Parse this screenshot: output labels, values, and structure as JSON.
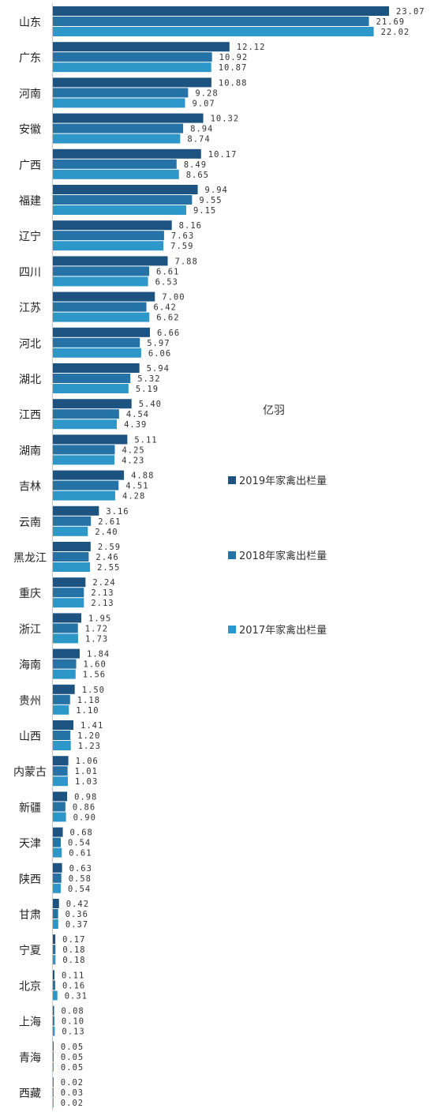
{
  "chart_data": {
    "type": "bar",
    "orientation": "horizontal",
    "unit": "亿羽",
    "categories": [
      "山东",
      "广东",
      "河南",
      "安徽",
      "广西",
      "福建",
      "辽宁",
      "四川",
      "江苏",
      "河北",
      "湖北",
      "江西",
      "湖南",
      "吉林",
      "云南",
      "黑龙江",
      "重庆",
      "浙江",
      "海南",
      "贵州",
      "山西",
      "内蒙古",
      "新疆",
      "天津",
      "陕西",
      "甘肃",
      "宁夏",
      "北京",
      "上海",
      "青海",
      "西藏"
    ],
    "series": [
      {
        "name": "2019年家禽出栏量",
        "color": "#1c5380",
        "values": [
          23.07,
          12.12,
          10.88,
          10.32,
          10.17,
          9.94,
          8.16,
          7.88,
          7.0,
          6.66,
          5.94,
          5.4,
          5.11,
          4.88,
          3.16,
          2.59,
          2.24,
          1.95,
          1.84,
          1.5,
          1.41,
          1.06,
          0.98,
          0.68,
          0.63,
          0.42,
          0.17,
          0.11,
          0.08,
          0.05,
          0.02
        ]
      },
      {
        "name": "2018年家禽出栏量",
        "color": "#2472a6",
        "values": [
          21.69,
          10.92,
          9.28,
          8.94,
          8.49,
          9.55,
          7.63,
          6.61,
          6.42,
          5.97,
          5.32,
          4.54,
          4.25,
          4.51,
          2.61,
          2.46,
          2.13,
          1.72,
          1.6,
          1.18,
          1.2,
          1.01,
          0.86,
          0.54,
          0.58,
          0.36,
          0.18,
          0.16,
          0.1,
          0.05,
          0.03
        ]
      },
      {
        "name": "2017年家禽出栏量",
        "color": "#2e97c9",
        "values": [
          22.02,
          10.87,
          9.07,
          8.74,
          8.65,
          9.15,
          7.59,
          6.53,
          6.62,
          6.06,
          5.19,
          4.39,
          4.23,
          4.28,
          2.4,
          2.55,
          2.13,
          1.73,
          1.56,
          1.1,
          1.23,
          1.03,
          0.9,
          0.61,
          0.54,
          0.37,
          0.18,
          0.31,
          0.13,
          0.05,
          0.02
        ]
      }
    ],
    "value_labels": [
      [
        "23.07",
        "12.12",
        "10.88",
        "10.32",
        "10.17",
        "9.94",
        "8.16",
        "7.88",
        "7.00",
        "6.66",
        "5.94",
        "5.40",
        "5.11",
        "4.88",
        "3.16",
        "2.59",
        "2.24",
        "1.95",
        "1.84",
        "1.50",
        "1.41",
        "1.06",
        "0.98",
        "0.68",
        "0.63",
        "0.42",
        "0.17",
        "0.11",
        "0.08",
        "0.05",
        "0.02"
      ],
      [
        "21.69",
        "10.92",
        "9.28",
        "8.94",
        "8.49",
        "9.55",
        "7.63",
        "6.61",
        "6.42",
        "5.97",
        "5.32",
        "4.54",
        "4.25",
        "4.51",
        "2.61",
        "2.46",
        "2.13",
        "1.72",
        "1.60",
        "1.18",
        "1.20",
        "1.01",
        "0.86",
        "0.54",
        "0.58",
        "0.36",
        "0.18",
        "0.16",
        "0.10",
        "0.05",
        "0.03"
      ],
      [
        "22.02",
        "10.87",
        "9.07",
        "8.74",
        "8.65",
        "9.15",
        "7.59",
        "6.53",
        "6.62",
        "6.06",
        "5.19",
        "4.39",
        "4.23",
        "4.28",
        "2.40",
        "2.55",
        "2.13",
        "1.73",
        "1.56",
        "1.10",
        "1.23",
        "1.03",
        "0.90",
        "0.61",
        "0.54",
        "0.37",
        "0.18",
        "0.31",
        "0.13",
        "0.05",
        "0.02"
      ]
    ],
    "xlim": [
      0,
      23.07
    ],
    "grid": false,
    "legend_position": "right"
  }
}
